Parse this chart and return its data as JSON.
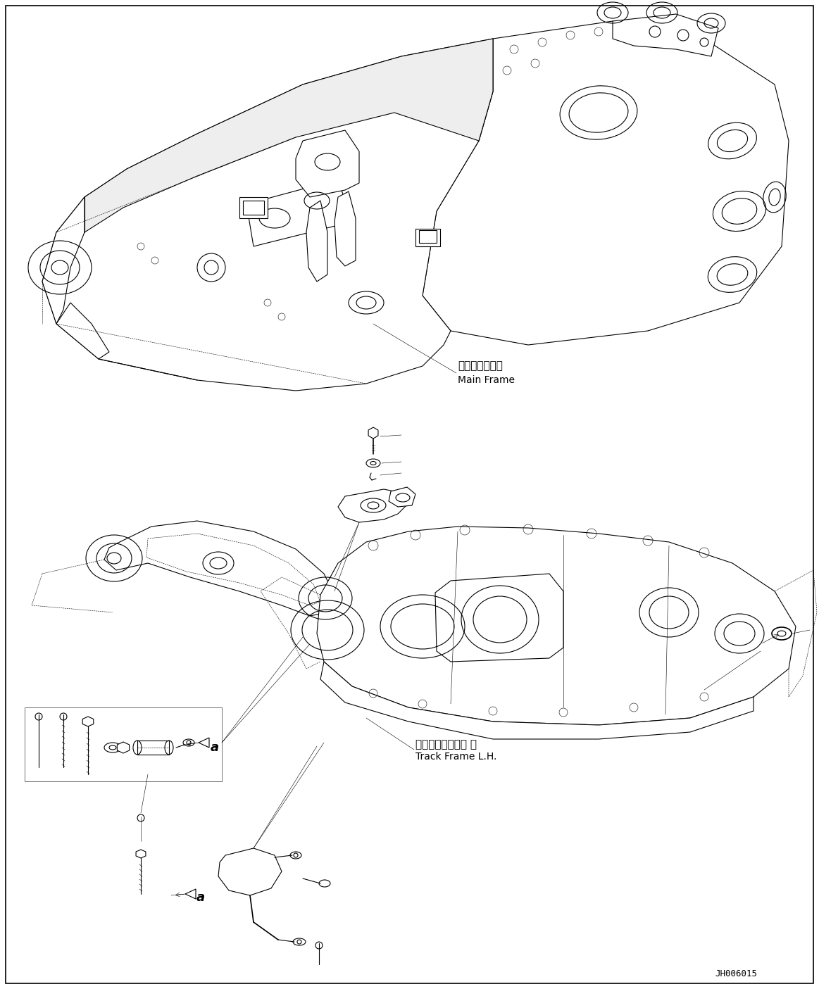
{
  "bg_color": "#ffffff",
  "fig_width": 11.63,
  "fig_height": 14.05,
  "dpi": 100,
  "label_main_frame_ja": "メインフレーム",
  "label_main_frame_en": "Main Frame",
  "label_track_frame_ja": "トラックフレーム 左",
  "label_track_frame_en": "Track Frame L.H.",
  "label_part_id": "JH006015",
  "label_a": "a",
  "line_color": "#000000",
  "text_color": "#000000",
  "lw": 0.8,
  "lw_thin": 0.4,
  "lw_thick": 1.2
}
